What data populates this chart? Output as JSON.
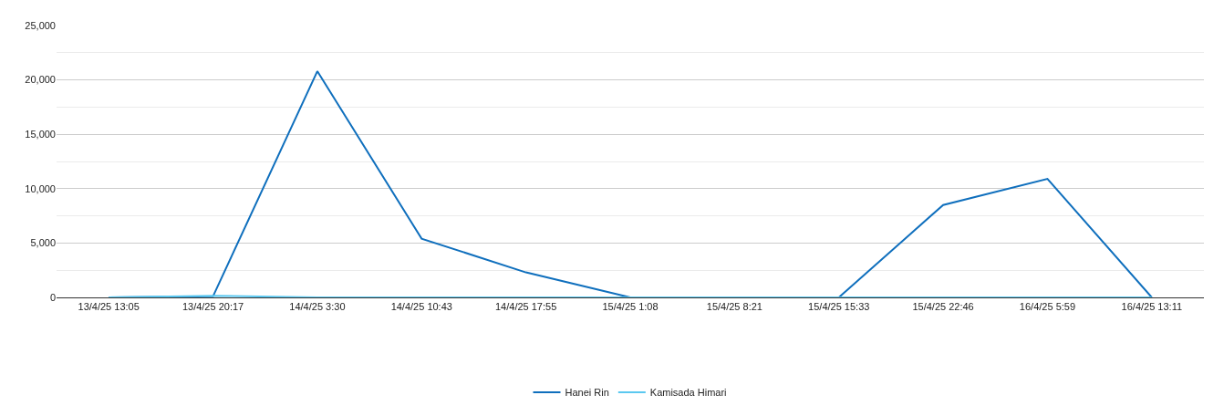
{
  "chart_data": {
    "type": "line",
    "categories": [
      "13/4/25 13:05",
      "13/4/25 20:17",
      "14/4/25 3:30",
      "14/4/25 10:43",
      "14/4/25 17:55",
      "15/4/25 1:08",
      "15/4/25 8:21",
      "15/4/25 15:33",
      "15/4/25 22:46",
      "16/4/25 5:59",
      "16/4/25 13:11"
    ],
    "series": [
      {
        "name": "Hanei Rin",
        "color": "#0f6fbd",
        "values": [
          0,
          100,
          20800,
          5400,
          2300,
          0,
          0,
          0,
          8500,
          10900,
          0
        ]
      },
      {
        "name": "Kamisada Himari",
        "color": "#5bc8f0",
        "values": [
          0,
          150,
          0,
          0,
          0,
          0,
          0,
          0,
          0,
          0,
          0
        ]
      }
    ],
    "ylim": [
      0,
      25000
    ],
    "yticks": [
      0,
      {
        "value": 2500,
        "label": null
      },
      "5,000",
      {
        "value": 7500,
        "label": null
      },
      {
        "value": 10000,
        "label": "10,000"
      },
      {
        "value": 12500,
        "label": null
      },
      {
        "value": 15000,
        "label": "15,000"
      },
      {
        "value": 17500,
        "label": null
      },
      {
        "value": 20000,
        "label": "20,000"
      },
      {
        "value": 22500,
        "label": null
      },
      {
        "value": 25000,
        "label": "25,000"
      }
    ],
    "grid": "y",
    "legend": "bottom",
    "marker": "none",
    "line_style": "solid"
  }
}
